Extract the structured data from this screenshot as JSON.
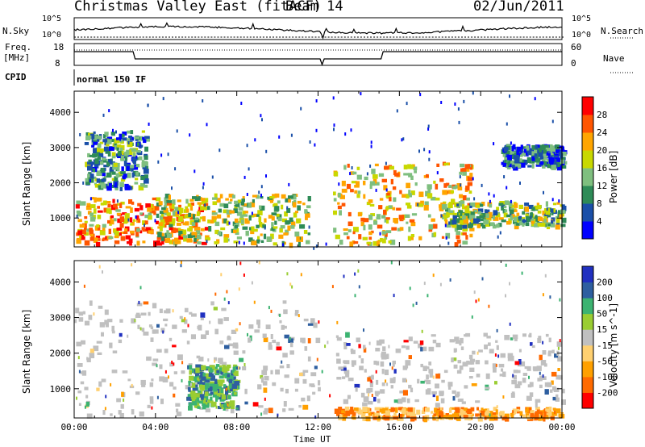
{
  "header": {
    "station": "Christmas Valley East (fitACF)",
    "beam": "Beam 14",
    "date": "02/Jun/2011"
  },
  "top_panels": {
    "nsky_label": "N.Sky",
    "nsearch_label": "N.Search",
    "nsky_ticks": [
      "10^5",
      "10^0"
    ],
    "nsearch_ticks": [
      "10^5",
      "10^0"
    ],
    "freq_label_1": "Freq.",
    "freq_label_2": "[MHz]",
    "freq_ticks": [
      "18",
      "8"
    ],
    "nave_label": "Nave",
    "nave_ticks": [
      "60",
      "0"
    ],
    "cpid_label": "CPID",
    "cpid_value": "normal 150 IF"
  },
  "colors": {
    "power_scale": [
      "#0000ff",
      "#1a4fa8",
      "#2e8b57",
      "#7fbf7f",
      "#c8d800",
      "#ffa500",
      "#ff5500",
      "#ff0000"
    ],
    "velocity_scale": [
      "#ff0000",
      "#ff6a00",
      "#ffa000",
      "#ffd070",
      "#c0c0c0",
      "#9acd32",
      "#3cb371",
      "#2e5fa0",
      "#2030c0"
    ],
    "ground_scatter": "#c0c0c0"
  },
  "chart_data": [
    {
      "type": "heatmap",
      "title": "",
      "xlabel": "Time UT",
      "ylabel": "Slant Range [km]",
      "xlim": [
        "00:00",
        "00:00"
      ],
      "ylim": [
        180,
        4600
      ],
      "x_ticks": [
        "00:00",
        "04:00",
        "08:00",
        "12:00",
        "16:00",
        "20:00",
        "00:00"
      ],
      "y_ticks": [
        1000,
        2000,
        3000,
        4000
      ],
      "colorbar_label": "Power [dB]",
      "colorbar_ticks": [
        4,
        8,
        12,
        16,
        20,
        24,
        28
      ],
      "colorbar_range": [
        0,
        32
      ],
      "features": [
        {
          "time_start": 0.5,
          "time_end": 3.5,
          "range_start": 1900,
          "range_end": 3500,
          "value": 10
        },
        {
          "time_start": 0.0,
          "time_end": 6.5,
          "range_start": 300,
          "range_end": 1600,
          "value": 22
        },
        {
          "time_start": 4.0,
          "time_end": 11.5,
          "range_start": 300,
          "range_end": 1700,
          "value": 16
        },
        {
          "time_start": 12.7,
          "time_end": 19.5,
          "range_start": 300,
          "range_end": 2600,
          "value": 20
        },
        {
          "time_start": 18.0,
          "time_end": 24.0,
          "range_start": 800,
          "range_end": 1500,
          "value": 14
        },
        {
          "time_start": 21.0,
          "time_end": 24.0,
          "range_start": 2500,
          "range_end": 3100,
          "value": 8
        }
      ]
    },
    {
      "type": "heatmap",
      "title": "",
      "xlabel": "Time UT",
      "ylabel": "Slant Range [km]",
      "xlim": [
        "00:00",
        "00:00"
      ],
      "ylim": [
        180,
        4600
      ],
      "x_ticks": [
        "00:00",
        "04:00",
        "08:00",
        "12:00",
        "16:00",
        "20:00",
        "00:00"
      ],
      "y_ticks": [
        1000,
        2000,
        3000,
        4000
      ],
      "colorbar_label": "Velocity [m s^-1]",
      "colorbar_ticks": [
        200,
        100,
        50,
        15,
        -15,
        -50,
        -100,
        -200
      ],
      "colorbar_range": [
        -250,
        250
      ],
      "features": [
        {
          "time_start": 0.0,
          "time_end": 12.0,
          "range_start": 300,
          "range_end": 3500,
          "value": 0
        },
        {
          "time_start": 5.5,
          "time_end": 8.0,
          "range_start": 500,
          "range_end": 1700,
          "value": 60
        },
        {
          "time_start": 12.7,
          "time_end": 24.0,
          "range_start": 200,
          "range_end": 500,
          "value": -40
        },
        {
          "time_start": 12.7,
          "time_end": 24.0,
          "range_start": 600,
          "range_end": 2600,
          "value": 0
        }
      ]
    }
  ]
}
